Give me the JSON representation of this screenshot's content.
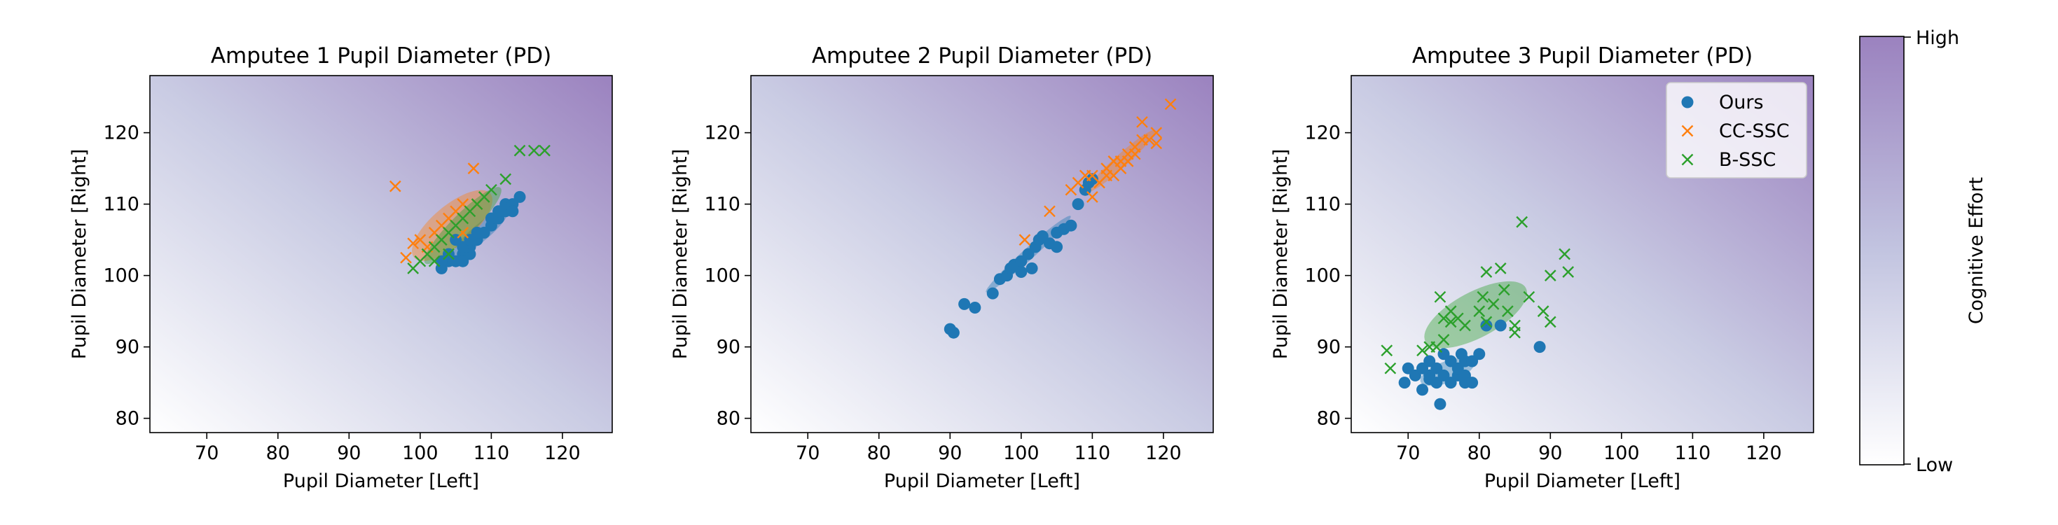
{
  "figure": {
    "colorbar": {
      "label": "Cognitive Effort",
      "high_label": "High",
      "low_label": "Low",
      "color_low": "#ffffff",
      "color_mid": "#c2c4e0",
      "color_high": "#9b82bf"
    },
    "legend": {
      "entries": [
        {
          "name": "Ours",
          "marker": "circle",
          "color": "#1f77b4"
        },
        {
          "name": "CC-SSC",
          "marker": "x",
          "color": "#ff7f0e"
        },
        {
          "name": "B-SSC",
          "marker": "x",
          "color": "#2ca02c"
        }
      ],
      "placement": "upper-right of third panel"
    }
  },
  "chart_data": [
    {
      "type": "scatter",
      "title": "Amputee 1 Pupil Diameter (PD)",
      "xlabel": "Pupil Diameter [Left]",
      "ylabel": "Pupil Diameter [Right]",
      "xlim": [
        62,
        127
      ],
      "ylim": [
        78,
        128
      ],
      "xticks": [
        70,
        80,
        90,
        100,
        110,
        120
      ],
      "yticks": [
        80,
        90,
        100,
        110,
        120
      ],
      "grid": false,
      "series": [
        {
          "name": "Ours",
          "marker": "circle",
          "color": "#1f77b4",
          "points": [
            [
              103,
              101
            ],
            [
              104,
              102
            ],
            [
              105,
              102
            ],
            [
              106,
              103
            ],
            [
              107,
              103
            ],
            [
              107,
              104
            ],
            [
              106,
              104
            ],
            [
              105,
              105
            ],
            [
              108,
              105
            ],
            [
              109,
              106
            ],
            [
              110,
              107
            ],
            [
              111,
              108
            ],
            [
              112,
              109
            ],
            [
              112,
              110
            ],
            [
              113,
              110
            ],
            [
              114,
              111
            ],
            [
              113,
              109
            ],
            [
              110,
              108
            ],
            [
              108,
              106
            ],
            [
              104,
              103
            ],
            [
              103,
              102
            ],
            [
              106,
              102
            ],
            [
              107,
              105
            ],
            [
              111,
              109
            ]
          ],
          "ellipse": {
            "cx": 108.5,
            "cy": 106,
            "rx": 5,
            "ry": 1.2,
            "angle": 40
          }
        },
        {
          "name": "CC-SSC",
          "marker": "x",
          "color": "#ff7f0e",
          "points": [
            [
              96.5,
              112.5
            ],
            [
              98,
              102.5
            ],
            [
              99,
              104.5
            ],
            [
              100,
              105
            ],
            [
              101,
              104
            ],
            [
              102,
              106
            ],
            [
              103,
              107
            ],
            [
              104,
              108
            ],
            [
              105,
              109
            ],
            [
              106,
              110
            ],
            [
              107.5,
              115
            ],
            [
              108,
              110
            ],
            [
              106,
              106
            ]
          ],
          "ellipse": {
            "cx": 104.5,
            "cy": 107,
            "rx": 7,
            "ry": 2.8,
            "angle": 40
          }
        },
        {
          "name": "B-SSC",
          "marker": "x",
          "color": "#2ca02c",
          "points": [
            [
              99,
              101
            ],
            [
              100,
              102
            ],
            [
              101,
              103
            ],
            [
              102,
              104
            ],
            [
              103,
              105
            ],
            [
              104,
              106
            ],
            [
              105,
              107
            ],
            [
              106,
              108
            ],
            [
              107,
              109
            ],
            [
              108,
              110
            ],
            [
              109,
              111
            ],
            [
              110,
              112
            ],
            [
              112,
              113.5
            ],
            [
              114,
              117.5
            ],
            [
              116,
              117.5
            ],
            [
              117.5,
              117.5
            ],
            [
              102,
              102
            ],
            [
              104,
              103
            ]
          ],
          "ellipse": {
            "cx": 106,
            "cy": 107,
            "rx": 7.5,
            "ry": 1.6,
            "angle": 45
          }
        }
      ]
    },
    {
      "type": "scatter",
      "title": "Amputee 2 Pupil Diameter (PD)",
      "xlabel": "Pupil Diameter [Left]",
      "ylabel": "Pupil Diameter [Right]",
      "xlim": [
        62,
        127
      ],
      "ylim": [
        78,
        128
      ],
      "xticks": [
        70,
        80,
        90,
        100,
        110,
        120
      ],
      "yticks": [
        80,
        90,
        100,
        110,
        120
      ],
      "grid": false,
      "series": [
        {
          "name": "Ours",
          "marker": "circle",
          "color": "#1f77b4",
          "points": [
            [
              90,
              92.5
            ],
            [
              90.5,
              92
            ],
            [
              92,
              96
            ],
            [
              93.5,
              95.5
            ],
            [
              96,
              97.5
            ],
            [
              97,
              99.5
            ],
            [
              98,
              100
            ],
            [
              98.5,
              101
            ],
            [
              99,
              101.5
            ],
            [
              100,
              102
            ],
            [
              100,
              100.5
            ],
            [
              101,
              103
            ],
            [
              102,
              104
            ],
            [
              102.5,
              105
            ],
            [
              103,
              105.5
            ],
            [
              104,
              104.5
            ],
            [
              105,
              106
            ],
            [
              105,
              104
            ],
            [
              106,
              106.5
            ],
            [
              107,
              107
            ],
            [
              108,
              110
            ],
            [
              109,
              112
            ],
            [
              109.5,
              113
            ],
            [
              110,
              113.5
            ],
            [
              101.5,
              101
            ]
          ],
          "ellipse": {
            "cx": 101,
            "cy": 103,
            "rx": 8,
            "ry": 0.8,
            "angle": 42
          }
        },
        {
          "name": "CC-SSC",
          "marker": "x",
          "color": "#ff7f0e",
          "points": [
            [
              100.5,
              105
            ],
            [
              104,
              109
            ],
            [
              107,
              112
            ],
            [
              108,
              113
            ],
            [
              109,
              114
            ],
            [
              110,
              111
            ],
            [
              110,
              114
            ],
            [
              111,
              113
            ],
            [
              112,
              114
            ],
            [
              112,
              115
            ],
            [
              113,
              116
            ],
            [
              113,
              114
            ],
            [
              114,
              116
            ],
            [
              114,
              115
            ],
            [
              115,
              116
            ],
            [
              115,
              117
            ],
            [
              116,
              118
            ],
            [
              116,
              117
            ],
            [
              117,
              119
            ],
            [
              117,
              121.5
            ],
            [
              118,
              119
            ],
            [
              119,
              120
            ],
            [
              119,
              118.5
            ],
            [
              121,
              124
            ]
          ],
          "ellipse": {
            "cx": 114,
            "cy": 116,
            "rx": 6.5,
            "ry": 0.9,
            "angle": 42
          }
        }
      ]
    },
    {
      "type": "scatter",
      "title": "Amputee 3 Pupil Diameter (PD)",
      "xlabel": "Pupil Diameter [Left]",
      "ylabel": "Pupil Diameter [Right]",
      "xlim": [
        62,
        127
      ],
      "ylim": [
        78,
        128
      ],
      "xticks": [
        70,
        80,
        90,
        100,
        110,
        120
      ],
      "yticks": [
        80,
        90,
        100,
        110,
        120
      ],
      "grid": false,
      "series": [
        {
          "name": "Ours",
          "marker": "circle",
          "color": "#1f77b4",
          "points": [
            [
              69.5,
              85
            ],
            [
              70,
              87
            ],
            [
              71,
              86
            ],
            [
              72,
              87
            ],
            [
              72,
              84
            ],
            [
              73,
              86
            ],
            [
              73,
              88
            ],
            [
              74,
              85
            ],
            [
              74,
              87
            ],
            [
              74.5,
              82
            ],
            [
              75,
              89
            ],
            [
              75,
              86
            ],
            [
              76,
              85
            ],
            [
              76,
              88
            ],
            [
              77,
              86
            ],
            [
              77,
              87
            ],
            [
              77.5,
              89
            ],
            [
              78,
              86
            ],
            [
              78,
              85
            ],
            [
              78,
              88
            ],
            [
              79,
              85
            ],
            [
              79,
              88
            ],
            [
              80,
              89
            ],
            [
              81,
              93
            ],
            [
              83,
              93
            ],
            [
              88.5,
              90
            ],
            [
              73,
              85.5
            ]
          ],
          "ellipse": {
            "cx": 75.5,
            "cy": 86.5,
            "rx": 4,
            "ry": 1.5,
            "angle": 20
          }
        },
        {
          "name": "B-SSC",
          "marker": "x",
          "color": "#2ca02c",
          "points": [
            [
              67,
              89.5
            ],
            [
              67.5,
              87
            ],
            [
              72,
              89.5
            ],
            [
              73,
              90
            ],
            [
              74,
              90
            ],
            [
              74.5,
              97
            ],
            [
              75,
              91
            ],
            [
              75,
              94
            ],
            [
              76,
              95
            ],
            [
              76,
              93.5
            ],
            [
              77,
              94
            ],
            [
              80,
              95
            ],
            [
              80.5,
              97
            ],
            [
              81,
              100.5
            ],
            [
              81,
              93.5
            ],
            [
              82,
              96
            ],
            [
              83,
              101
            ],
            [
              83.5,
              98
            ],
            [
              84,
              95
            ],
            [
              85,
              93
            ],
            [
              85,
              92
            ],
            [
              86,
              107.5
            ],
            [
              87,
              97
            ],
            [
              89,
              95
            ],
            [
              90,
              100
            ],
            [
              90,
              93.5
            ],
            [
              92,
              103
            ],
            [
              92.5,
              100.5
            ],
            [
              78,
              93
            ]
          ],
          "ellipse": {
            "cx": 79.5,
            "cy": 94.5,
            "rx": 8,
            "ry": 3.2,
            "angle": 28
          }
        }
      ]
    }
  ]
}
